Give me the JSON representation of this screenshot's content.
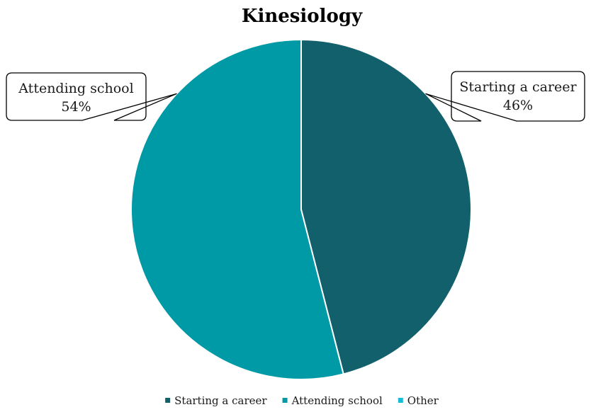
{
  "chart_data": {
    "type": "pie",
    "title": "Kinesiology",
    "categories": [
      "Starting a career",
      "Attending school",
      "Other"
    ],
    "values": [
      46,
      54,
      0
    ],
    "value_labels": [
      "46%",
      "54%",
      ""
    ],
    "colors": [
      "#11606b",
      "#009aa7",
      "#18bcd6"
    ],
    "legend_position": "bottom",
    "data_labels": "callout"
  }
}
